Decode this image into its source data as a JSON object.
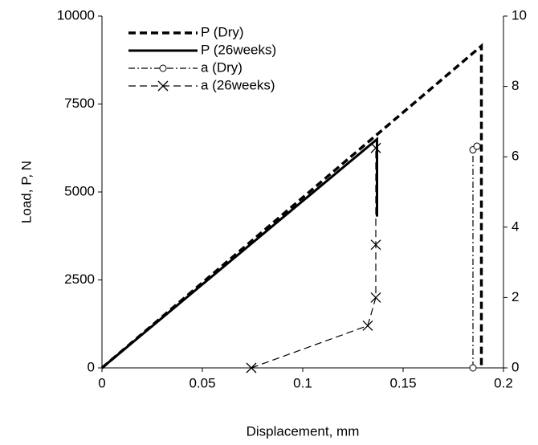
{
  "chart_data": {
    "type": "line",
    "x_label": "Displacement, mm",
    "y_label": "Load, P, N",
    "xlim": [
      0,
      0.2
    ],
    "xticks": [
      0,
      0.05,
      0.1,
      0.15,
      0.2
    ],
    "ylim": [
      0,
      10000
    ],
    "yticks": [
      0,
      2500,
      5000,
      7500,
      10000
    ],
    "y2lim": [
      0,
      10
    ],
    "y2ticks": [
      0,
      2,
      4,
      6,
      8,
      10
    ],
    "legend": "upper-left",
    "series": [
      {
        "name": "P (Dry)",
        "color": "#000000",
        "dash": "dash",
        "width": 3.5,
        "marker": "none",
        "x": [
          0,
          0.189,
          0.189
        ],
        "values": [
          0,
          9150,
          0
        ]
      },
      {
        "name": "P (26weeks)",
        "color": "#000000",
        "dash": "solid",
        "width": 3,
        "marker": "none",
        "x": [
          0,
          0.137,
          0.137
        ],
        "values": [
          0,
          6500,
          4300
        ]
      },
      {
        "name": "a (Dry)",
        "color": "#000000",
        "dash": "dashdot",
        "width": 1.2,
        "marker": "circle",
        "axis": "y2",
        "x": [
          0.1848,
          0.1848,
          0.1868
        ],
        "values": [
          0,
          6.2,
          6.3
        ]
      },
      {
        "name": "a (26weeks)",
        "color": "#000000",
        "dash": "dash",
        "width": 1.2,
        "marker": "x",
        "axis": "y2",
        "x": [
          0.0744,
          0.1324,
          0.1364,
          0.1364,
          0.1364
        ],
        "values": [
          0,
          1.2,
          2.0,
          3.5,
          6.25
        ]
      }
    ]
  }
}
